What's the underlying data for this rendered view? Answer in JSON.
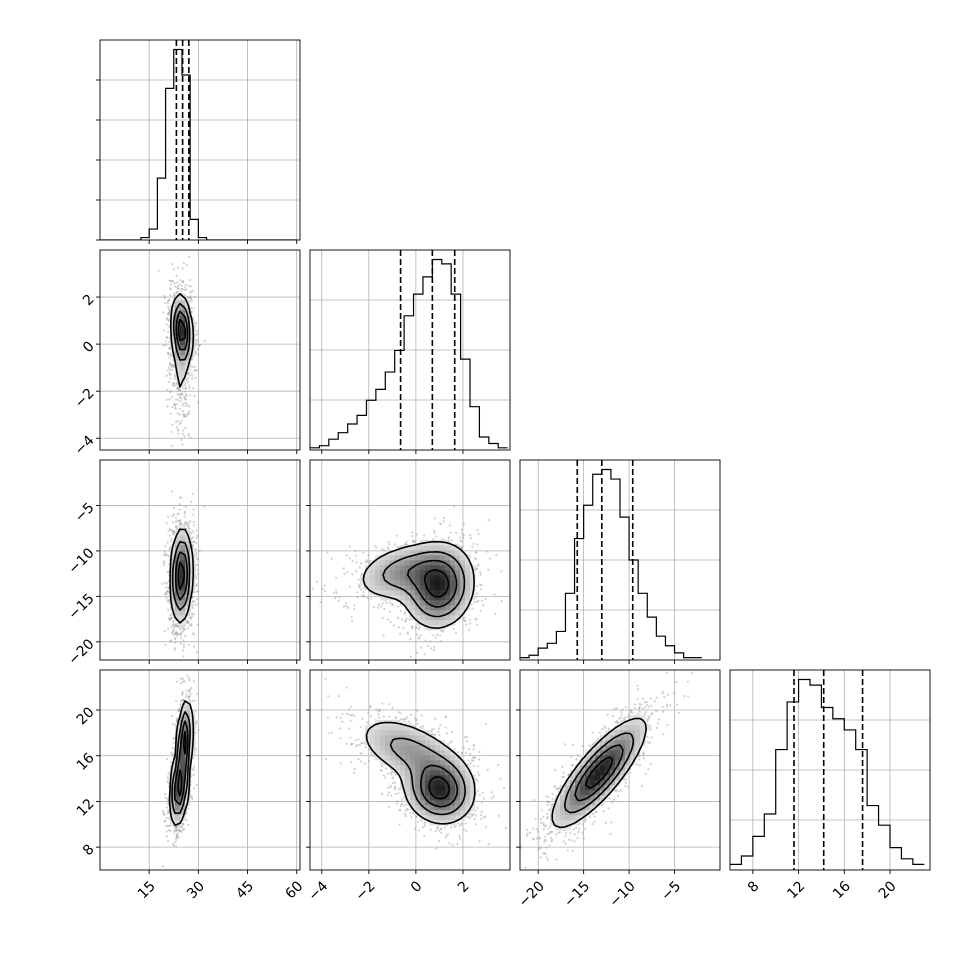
{
  "chart_data": {
    "type": "corner",
    "n_params": 4,
    "grid": true,
    "param_ranges": [
      [
        0,
        61
      ],
      [
        -4.5,
        4.0
      ],
      [
        -22,
        0
      ],
      [
        6,
        23.5
      ]
    ],
    "ticks": [
      {
        "values": [
          15,
          30,
          45,
          60
        ],
        "labels": [
          "15",
          "30",
          "45",
          "60"
        ]
      },
      {
        "values": [
          -4,
          -2,
          0,
          2
        ],
        "labels": [
          "−4",
          "−2",
          "0",
          "2"
        ]
      },
      {
        "values": [
          -20,
          -15,
          -10,
          -5
        ],
        "labels": [
          "−20",
          "−15",
          "−10",
          "−5"
        ]
      },
      {
        "values": [
          8,
          12,
          16,
          20
        ],
        "labels": [
          "8",
          "12",
          "16",
          "20"
        ]
      }
    ],
    "quantiles": [
      [
        23.3,
        25.2,
        27.1
      ],
      [
        -0.65,
        0.7,
        1.65
      ],
      [
        -15.7,
        -13.0,
        -9.6
      ],
      [
        11.6,
        14.2,
        17.6
      ]
    ],
    "histograms": [
      {
        "edges": [
          0,
          2.5,
          5,
          7.5,
          10,
          12.5,
          15,
          17.5,
          20,
          22.5,
          25,
          27.5,
          30,
          32.5,
          35,
          37.5,
          40,
          42.5,
          45,
          47.5,
          50,
          52.5,
          55,
          57.5,
          60
        ],
        "counts": [
          0,
          0,
          0,
          0,
          0,
          2,
          9,
          51,
          125,
          157,
          136,
          17,
          2,
          0,
          0,
          0,
          0,
          0,
          0,
          0,
          0,
          0,
          0,
          0
        ]
      },
      {
        "edges": [
          -4.5,
          -4.1,
          -3.7,
          -3.3,
          -2.9,
          -2.5,
          -2.1,
          -1.7,
          -1.3,
          -0.9,
          -0.5,
          -0.1,
          0.3,
          0.7,
          1.1,
          1.5,
          1.9,
          2.3,
          2.7,
          3.1,
          3.5,
          3.9
        ],
        "counts": [
          1,
          2,
          5,
          8,
          12,
          16,
          23,
          28,
          36,
          46,
          62,
          72,
          80,
          88,
          86,
          72,
          42,
          20,
          6,
          3,
          1
        ]
      },
      {
        "edges": [
          -22,
          -21,
          -20,
          -19,
          -18,
          -17,
          -16,
          -15,
          -14,
          -13,
          -12,
          -11,
          -10,
          -9,
          -8,
          -7,
          -6,
          -5,
          -4,
          -3,
          -2
        ],
        "counts": [
          1,
          2,
          5,
          7,
          12,
          28,
          51,
          65,
          78,
          80,
          76,
          60,
          42,
          28,
          18,
          10,
          6,
          3,
          1,
          1
        ]
      },
      {
        "edges": [
          6,
          7,
          8,
          9,
          10,
          11,
          12,
          13,
          14,
          15,
          16,
          17,
          18,
          19,
          20,
          21,
          22,
          23
        ],
        "counts": [
          2,
          5,
          12,
          20,
          43,
          60,
          68,
          66,
          58,
          54,
          50,
          43,
          23,
          16,
          8,
          4,
          2
        ]
      }
    ],
    "pair_densities": [
      {
        "x_param": 0,
        "y_param": 1,
        "components": [
          {
            "mx": 25,
            "my": 0.6,
            "sx": 1.6,
            "sy": 0.75,
            "rho": -0.2,
            "w": 0.75
          },
          {
            "mx": 24.6,
            "my": -0.8,
            "sx": 1.5,
            "sy": 1.4,
            "rho": 0.0,
            "w": 0.25
          }
        ]
      },
      {
        "x_param": 0,
        "y_param": 2,
        "components": [
          {
            "mx": 24.8,
            "my": -12.7,
            "sx": 1.7,
            "sy": 2.6,
            "rho": 0.1,
            "w": 1.0
          }
        ]
      },
      {
        "x_param": 1,
        "y_param": 2,
        "components": [
          {
            "mx": 1.0,
            "my": -14.0,
            "sx": 0.75,
            "sy": 2.3,
            "rho": 0.1,
            "w": 0.65
          },
          {
            "mx": -0.5,
            "my": -12.3,
            "sx": 1.1,
            "sy": 1.7,
            "rho": 0.3,
            "w": 0.35
          }
        ]
      },
      {
        "x_param": 0,
        "y_param": 3,
        "components": [
          {
            "mx": 24.2,
            "my": 13.2,
            "sx": 1.5,
            "sy": 1.7,
            "rho": 0.3,
            "w": 0.55
          },
          {
            "mx": 25.8,
            "my": 17.4,
            "sx": 1.2,
            "sy": 1.8,
            "rho": 0.3,
            "w": 0.45
          }
        ]
      },
      {
        "x_param": 1,
        "y_param": 3,
        "components": [
          {
            "mx": 1.0,
            "my": 13.0,
            "sx": 0.75,
            "sy": 1.5,
            "rho": -0.1,
            "w": 0.6
          },
          {
            "mx": -0.3,
            "my": 16.5,
            "sx": 1.2,
            "sy": 1.6,
            "rho": -0.5,
            "w": 0.4
          }
        ]
      },
      {
        "x_param": 2,
        "y_param": 3,
        "components": [
          {
            "mx": -13.3,
            "my": 14.5,
            "sx": 2.6,
            "sy": 2.4,
            "rho": 0.82,
            "w": 1.0
          }
        ]
      }
    ]
  }
}
